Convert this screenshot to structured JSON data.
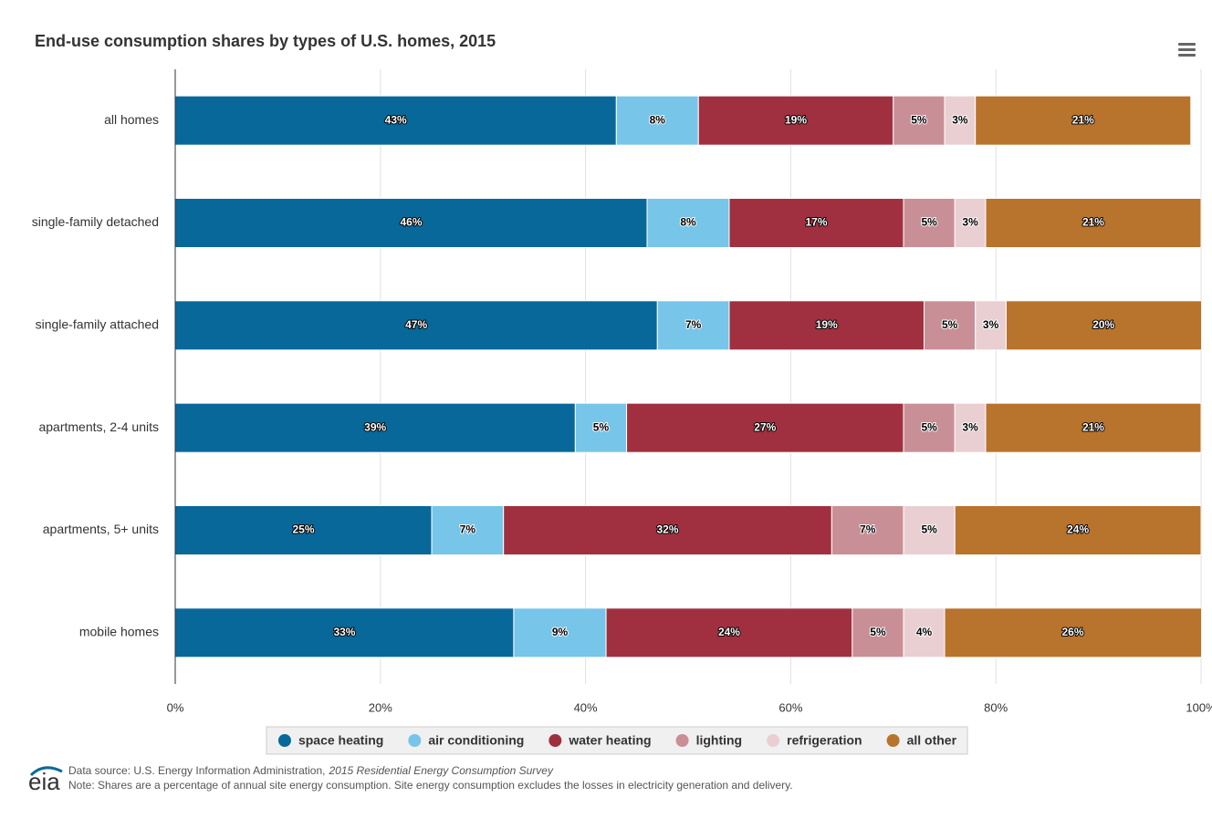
{
  "chart_data": {
    "type": "stacked-bar-horizontal",
    "title": "End-use consumption shares by types of U.S. homes, 2015",
    "categories": [
      "all homes",
      "single-family detached",
      "single-family attached",
      "apartments, 2-4 units",
      "apartments, 5+ units",
      "mobile homes"
    ],
    "series": [
      {
        "name": "space heating",
        "color": "#08689a",
        "values": [
          43,
          46,
          47,
          39,
          25,
          33
        ],
        "value_labels": [
          "43%",
          "46%",
          "47%",
          "39%",
          "25%",
          "33%"
        ]
      },
      {
        "name": "air conditioning",
        "color": "#77c5e9",
        "values": [
          8,
          8,
          7,
          5,
          7,
          9
        ],
        "value_labels": [
          "8%",
          "8%",
          "7%",
          "5%",
          "7%",
          "9%"
        ]
      },
      {
        "name": "water heating",
        "color": "#a0303f",
        "values": [
          19,
          17,
          19,
          27,
          32,
          24
        ],
        "value_labels": [
          "19%",
          "17%",
          "19%",
          "27%",
          "32%",
          "24%"
        ]
      },
      {
        "name": "lighting",
        "color": "#c98f96",
        "values": [
          5,
          5,
          5,
          5,
          7,
          5
        ],
        "value_labels": [
          "5%",
          "5%",
          "5%",
          "5%",
          "7%",
          "5%"
        ]
      },
      {
        "name": "refrigeration",
        "color": "#e9cfd2",
        "values": [
          3,
          3,
          3,
          3,
          5,
          4
        ],
        "value_labels": [
          "3%",
          "3%",
          "3%",
          "3%",
          "5%",
          "4%"
        ]
      },
      {
        "name": "all other",
        "color": "#b8732c",
        "values": [
          21,
          21,
          20,
          21,
          24,
          26
        ],
        "value_labels": [
          "21%",
          "21%",
          "20%",
          "21%",
          "24%",
          "26%"
        ]
      }
    ],
    "xlim": [
      0,
      100
    ],
    "xticks": [
      {
        "value": 0,
        "label": "0%"
      },
      {
        "value": 20,
        "label": "20%"
      },
      {
        "value": 40,
        "label": "40%"
      },
      {
        "value": 60,
        "label": "60%"
      },
      {
        "value": 80,
        "label": "80%"
      },
      {
        "value": 100,
        "label": "100%"
      }
    ],
    "grid": true,
    "legend": "bottom"
  },
  "footer": {
    "source_prefix": "Data source: U.S. Energy Information Administration,",
    "source_title": "2015 Residential Energy Consumption Survey",
    "note": "Note: Shares are a percentage of annual site energy consumption. Site energy consumption excludes the losses in electricity generation and delivery."
  }
}
